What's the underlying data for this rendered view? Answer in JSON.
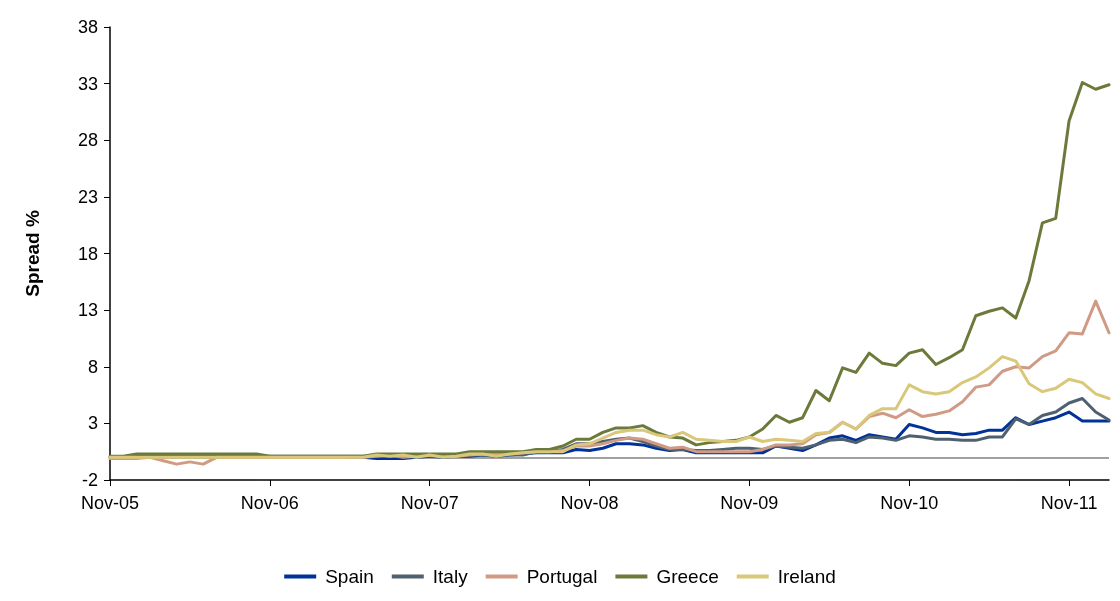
{
  "chart_data": {
    "type": "line",
    "ylabel": "Spread %",
    "categories": [
      "Nov-05",
      null,
      null,
      null,
      null,
      null,
      null,
      null,
      null,
      null,
      null,
      null,
      "Nov-06",
      null,
      null,
      null,
      null,
      null,
      null,
      null,
      null,
      null,
      null,
      null,
      "Nov-07",
      null,
      null,
      null,
      null,
      null,
      null,
      null,
      null,
      null,
      null,
      null,
      "Nov-08",
      null,
      null,
      null,
      null,
      null,
      null,
      null,
      null,
      null,
      null,
      null,
      "Nov-09",
      null,
      null,
      null,
      null,
      null,
      null,
      null,
      null,
      null,
      null,
      null,
      "Nov-10",
      null,
      null,
      null,
      null,
      null,
      null,
      null,
      null,
      null,
      null,
      null,
      "Nov-11",
      null,
      null,
      null
    ],
    "series": [
      {
        "name": "Spain",
        "color": "#003399",
        "values": [
          null,
          null,
          null,
          null,
          null,
          null,
          null,
          null,
          null,
          null,
          null,
          null,
          null,
          null,
          null,
          null,
          null,
          null,
          0,
          0,
          -0.1,
          -0.1,
          -0.1,
          0,
          0.1,
          0,
          0.1,
          0.1,
          0.2,
          0.1,
          0.2,
          0.3,
          0.4,
          0.4,
          0.4,
          0.7,
          0.6,
          0.8,
          1.2,
          1.2,
          1.1,
          0.8,
          0.6,
          0.7,
          0.4,
          0.4,
          0.4,
          0.4,
          0.4,
          0.4,
          1.0,
          0.8,
          0.6,
          1.1,
          1.7,
          1.9,
          1.5,
          2.0,
          1.8,
          1.6,
          2.9,
          2.6,
          2.2,
          2.2,
          2.0,
          2.1,
          2.4,
          2.4,
          3.5,
          2.9,
          3.2,
          3.5,
          4.0,
          3.2,
          3.2,
          3.2
        ]
      },
      {
        "name": "Italy",
        "color": "#4f6070",
        "values": [
          0,
          0,
          0.1,
          0.1,
          0.1,
          0.1,
          0.1,
          0.1,
          0.1,
          0.1,
          0.1,
          0.1,
          0.1,
          0.1,
          0.1,
          0.1,
          0.1,
          0.1,
          0.1,
          0.1,
          0.1,
          0.1,
          0.1,
          0.1,
          0.1,
          0.1,
          0.1,
          0.2,
          0.2,
          0.2,
          0.2,
          0.2,
          0.5,
          0.5,
          0.7,
          1.2,
          1.2,
          1.4,
          1.6,
          1.7,
          1.4,
          1.0,
          0.7,
          0.7,
          0.6,
          0.6,
          0.7,
          0.8,
          0.8,
          0.7,
          1.0,
          0.9,
          0.8,
          1.1,
          1.5,
          1.6,
          1.3,
          1.8,
          1.7,
          1.5,
          1.9,
          1.8,
          1.6,
          1.6,
          1.5,
          1.5,
          1.8,
          1.8,
          3.4,
          2.9,
          3.7,
          4.0,
          4.8,
          5.2,
          4.0,
          3.3
        ]
      },
      {
        "name": "Portugal",
        "color": "#d09a85",
        "values": [
          -0.1,
          -0.1,
          -0.1,
          0,
          -0.3,
          -0.6,
          -0.4,
          -0.6,
          0,
          0,
          0,
          0,
          0,
          0,
          0,
          0,
          0,
          0,
          0,
          0,
          0.1,
          0.2,
          0,
          0.1,
          0.2,
          0.1,
          0.1,
          0.2,
          0.3,
          0.2,
          0.3,
          0.4,
          0.5,
          0.5,
          0.6,
          1.0,
          1.0,
          1.2,
          1.5,
          1.7,
          1.6,
          1.2,
          0.8,
          0.9,
          0.5,
          0.5,
          0.5,
          0.5,
          0.5,
          0.7,
          1.1,
          1.1,
          1.2,
          2.0,
          2.2,
          3.1,
          2.5,
          3.6,
          3.9,
          3.5,
          4.2,
          3.6,
          3.8,
          4.1,
          4.9,
          6.2,
          6.4,
          7.6,
          8.0,
          7.9,
          8.9,
          9.4,
          11.0,
          10.9,
          13.8,
          11.0
        ]
      },
      {
        "name": "Greece",
        "color": "#6b7a3a",
        "values": [
          0.1,
          0.1,
          0.3,
          0.3,
          0.3,
          0.3,
          0.3,
          0.3,
          0.3,
          0.3,
          0.3,
          0.3,
          0.1,
          0.1,
          0.1,
          0.1,
          0.1,
          0.1,
          0.1,
          0.1,
          0.3,
          0.3,
          0.3,
          0.3,
          0.3,
          0.3,
          0.3,
          0.5,
          0.5,
          0.5,
          0.5,
          0.5,
          0.7,
          0.7,
          1.0,
          1.6,
          1.6,
          2.2,
          2.6,
          2.6,
          2.8,
          2.2,
          1.8,
          1.7,
          1.1,
          1.3,
          1.4,
          1.5,
          1.8,
          2.5,
          3.7,
          3.1,
          3.5,
          5.9,
          5.0,
          7.9,
          7.5,
          9.2,
          8.3,
          8.1,
          9.2,
          9.5,
          8.2,
          8.8,
          9.5,
          12.5,
          12.9,
          13.2,
          12.3,
          15.6,
          20.7,
          21.1,
          29.7,
          33.1,
          32.5,
          32.9
        ]
      },
      {
        "name": "Ireland",
        "color": "#d9c77a",
        "values": [
          0,
          0,
          0,
          0,
          0,
          0,
          0,
          0,
          0,
          0,
          0,
          0,
          0,
          0,
          0,
          0,
          0,
          0,
          0,
          0,
          0.2,
          0.1,
          0.2,
          0,
          0.2,
          0,
          0.1,
          0.3,
          0.3,
          0.1,
          0.3,
          0.4,
          0.5,
          0.5,
          0.5,
          1.1,
          1.2,
          1.7,
          2.2,
          2.4,
          2.4,
          2.0,
          1.8,
          2.2,
          1.6,
          1.5,
          1.4,
          1.4,
          1.8,
          1.4,
          1.6,
          1.5,
          1.4,
          2.1,
          2.2,
          3.1,
          2.5,
          3.7,
          4.3,
          4.3,
          6.4,
          5.8,
          5.6,
          5.8,
          6.6,
          7.1,
          7.9,
          8.9,
          8.5,
          6.5,
          5.8,
          6.1,
          6.9,
          6.6,
          5.6,
          5.2
        ]
      }
    ],
    "ylim": [
      -2,
      38
    ],
    "yticks": [
      -2,
      3,
      8,
      13,
      18,
      23,
      28,
      33,
      38
    ],
    "ref_lines": [
      {
        "axis": "y",
        "value": 0,
        "color": "#808080"
      }
    ],
    "legend": "bottom",
    "marker": "none",
    "line_style": "solid"
  }
}
